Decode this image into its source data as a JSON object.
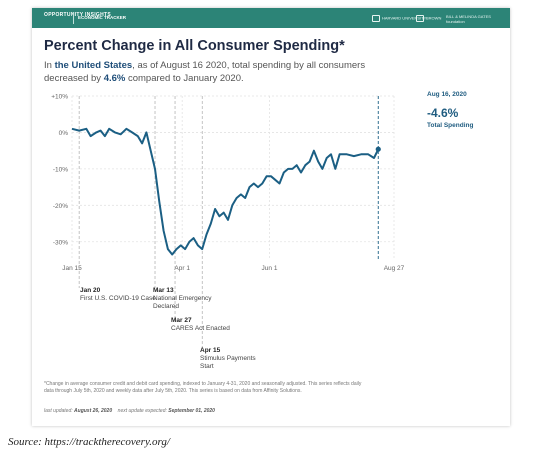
{
  "header": {
    "brand": "OPPORTUNITY INSIGHTS",
    "tracker": "ECONOMIC TRACKER",
    "partners": [
      "HARVARD UNIVERSITY",
      "BROWN",
      "BILL & MELINDA GATES foundation"
    ]
  },
  "title": "Percent Change in All Consumer Spending*",
  "subtitle": {
    "p1": "In ",
    "location": "the United States",
    "p2": ", as of August 16 2020, total spending by all consumers decreased by ",
    "value": "4.6%",
    "p3": " compared to January 2020."
  },
  "callout": {
    "date": "Aug 16, 2020",
    "value": "-4.6%",
    "label": "Total Spending"
  },
  "events": [
    {
      "date": "Jan 20",
      "text": "First U.S. COVID-19 Case",
      "x": "2020-01-20"
    },
    {
      "date": "Mar 13",
      "text": "National Emergency Declared",
      "x": "2020-03-13"
    },
    {
      "date": "Mar 27",
      "text": "CARES Act Enacted",
      "x": "2020-03-27"
    },
    {
      "date": "Apr 15",
      "text": "Stimulus Payments Start",
      "x": "2020-04-15"
    }
  ],
  "chart_data": {
    "type": "line",
    "ylim": [
      -35,
      10
    ],
    "yticks": [
      10,
      0,
      -10,
      -20,
      -30
    ],
    "ytick_labels": [
      "+10%",
      "0%",
      "-10%",
      "-20%",
      "-30%"
    ],
    "xlim": [
      "2020-01-15",
      "2020-08-27"
    ],
    "xticks": [
      "2020-01-15",
      "2020-04-01",
      "2020-06-01",
      "2020-08-27"
    ],
    "xtick_labels": [
      "Jan 15",
      "Apr 1",
      "Jun 1",
      "Aug 27"
    ],
    "grid": true,
    "series": [
      {
        "color": "#1b5f84",
        "x": [
          "2020-01-15",
          "2020-01-20",
          "2020-01-25",
          "2020-01-28",
          "2020-02-01",
          "2020-02-04",
          "2020-02-07",
          "2020-02-10",
          "2020-02-14",
          "2020-02-18",
          "2020-02-22",
          "2020-02-26",
          "2020-03-01",
          "2020-03-04",
          "2020-03-07",
          "2020-03-10",
          "2020-03-13",
          "2020-03-16",
          "2020-03-19",
          "2020-03-22",
          "2020-03-25",
          "2020-03-28",
          "2020-03-31",
          "2020-04-03",
          "2020-04-06",
          "2020-04-09",
          "2020-04-12",
          "2020-04-15",
          "2020-04-18",
          "2020-04-21",
          "2020-04-24",
          "2020-04-27",
          "2020-04-30",
          "2020-05-03",
          "2020-05-06",
          "2020-05-09",
          "2020-05-12",
          "2020-05-15",
          "2020-05-18",
          "2020-05-21",
          "2020-05-24",
          "2020-05-27",
          "2020-05-30",
          "2020-06-02",
          "2020-06-05",
          "2020-06-08",
          "2020-06-11",
          "2020-06-14",
          "2020-06-17",
          "2020-06-20",
          "2020-06-23",
          "2020-06-26",
          "2020-06-29",
          "2020-07-02",
          "2020-07-05",
          "2020-07-08",
          "2020-07-11",
          "2020-07-14",
          "2020-07-17",
          "2020-07-20",
          "2020-07-25",
          "2020-07-30",
          "2020-08-04",
          "2020-08-09",
          "2020-08-13",
          "2020-08-16"
        ],
        "y": [
          1,
          0.5,
          1,
          -1,
          0,
          0.5,
          -1,
          1,
          0,
          -0.5,
          1,
          0,
          -1,
          -3,
          0,
          -5,
          -10,
          -19,
          -27,
          -32,
          -33.5,
          -32,
          -31,
          -32,
          -30,
          -29,
          -31,
          -32,
          -28,
          -25,
          -21,
          -23,
          -22,
          -24,
          -20,
          -18,
          -17,
          -18,
          -15,
          -14,
          -15,
          -14,
          -12,
          -12,
          -13,
          -14,
          -11,
          -10,
          -10,
          -9,
          -11,
          -9,
          -8,
          -5,
          -8,
          -10,
          -7,
          -6,
          -10,
          -6,
          -6,
          -6.5,
          -6,
          -6,
          -7,
          -4.6
        ]
      }
    ]
  },
  "footnote": "*Change in average consumer credit and debit card spending, indexed to January 4-31, 2020 and seasonally adjusted. This series reflects daily data through July 5th, 2020 and weekly data after July 5th, 2020. This series is based on data from Affinity Solutions.",
  "updated": {
    "l1": "last updated: ",
    "v1": "August 26, 2020",
    "l2": "next update expected: ",
    "v2": "September 01, 2020"
  },
  "source": "Source: https://tracktherecovery.org/"
}
